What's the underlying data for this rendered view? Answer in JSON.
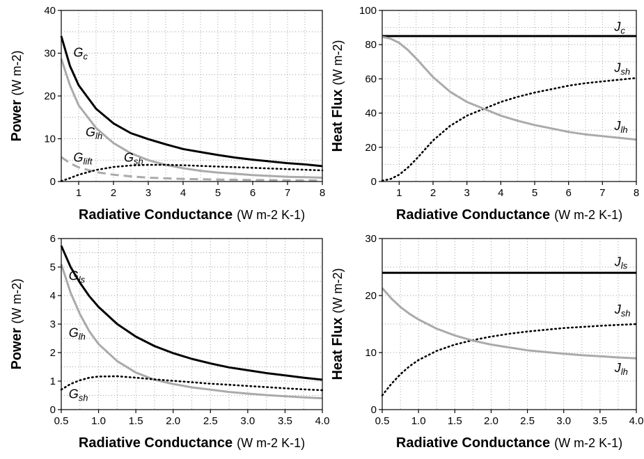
{
  "chart_data": [
    {
      "id": "top-left",
      "type": "line",
      "xlabel": "Radiative Conductance",
      "xunit": "(W m-2 K-1)",
      "ylabel": "Power",
      "yunit": "(W m-2)",
      "xlim": [
        0.5,
        8
      ],
      "ylim": [
        0,
        40
      ],
      "xticks": [
        1,
        2,
        3,
        4,
        5,
        6,
        7,
        8
      ],
      "xtick_labels": [
        "1",
        "2",
        "3",
        "4",
        "5",
        "6",
        "7",
        "8"
      ],
      "yticks": [
        0,
        10,
        20,
        30,
        40
      ],
      "ytick_labels": [
        "0",
        "10",
        "20",
        "30",
        "40"
      ],
      "grid": true,
      "series": [
        {
          "name": "Gc",
          "base": "G",
          "sub": "c",
          "color": "#000000",
          "style": "solid",
          "x": [
            0.5,
            0.75,
            1,
            1.5,
            2,
            2.5,
            3,
            3.5,
            4,
            4.5,
            5,
            5.5,
            6,
            6.5,
            7,
            7.5,
            8
          ],
          "y": [
            34,
            27,
            22.5,
            17,
            13.6,
            11.3,
            9.9,
            8.7,
            7.6,
            6.9,
            6.2,
            5.6,
            5.1,
            4.7,
            4.3,
            4.0,
            3.6
          ],
          "label_x": 0.85,
          "label_y": 29.2
        },
        {
          "name": "Glh",
          "base": "G",
          "sub": "lh",
          "color": "#aaaaaa",
          "style": "solid",
          "x": [
            0.5,
            0.75,
            1,
            1.5,
            2,
            2.5,
            3,
            3.5,
            4,
            4.5,
            5,
            5.5,
            6,
            6.5,
            7,
            7.5,
            8
          ],
          "y": [
            28.7,
            22.5,
            17.8,
            12.5,
            9.0,
            6.6,
            5.0,
            3.9,
            3.1,
            2.5,
            2.1,
            1.8,
            1.5,
            1.3,
            1.1,
            1.0,
            0.9
          ],
          "label_x": 1.2,
          "label_y": 10.6
        },
        {
          "name": "Glift",
          "base": "G",
          "sub": "lift",
          "color": "#aaaaaa",
          "style": "dashed",
          "x": [
            0.5,
            0.75,
            1,
            1.5,
            2,
            2.5,
            3,
            3.5,
            4,
            5,
            6,
            7,
            8
          ],
          "y": [
            5.7,
            4.3,
            3.3,
            2.2,
            1.6,
            1.2,
            0.9,
            0.75,
            0.6,
            0.45,
            0.35,
            0.3,
            0.25
          ],
          "label_x": 0.85,
          "label_y": 4.6
        },
        {
          "name": "Gsh",
          "base": "G",
          "sub": "sh",
          "color": "#000000",
          "style": "dotted",
          "x": [
            0.5,
            0.75,
            1,
            1.5,
            2,
            2.5,
            3,
            3.5,
            4,
            5,
            6,
            7,
            8
          ],
          "y": [
            0.1,
            0.8,
            1.6,
            2.7,
            3.4,
            3.75,
            3.9,
            3.9,
            3.8,
            3.5,
            3.2,
            2.9,
            2.6
          ],
          "label_x": 2.3,
          "label_y": 4.6
        }
      ]
    },
    {
      "id": "top-right",
      "type": "line",
      "xlabel": "Radiative Conductance",
      "xunit": "(W m-2 K-1)",
      "ylabel": "Heat Flux",
      "yunit": "(W m-2)",
      "xlim": [
        0.5,
        8
      ],
      "ylim": [
        0,
        100
      ],
      "xticks": [
        1,
        2,
        3,
        4,
        5,
        6,
        7,
        8
      ],
      "xtick_labels": [
        "1",
        "2",
        "3",
        "4",
        "5",
        "6",
        "7",
        "8"
      ],
      "yticks": [
        0,
        20,
        40,
        60,
        80,
        100
      ],
      "ytick_labels": [
        "0",
        "20",
        "40",
        "60",
        "80",
        "100"
      ],
      "grid": true,
      "series": [
        {
          "name": "Jc",
          "base": "J",
          "sub": "c",
          "color": "#000000",
          "style": "solid",
          "x": [
            0.5,
            8
          ],
          "y": [
            85,
            85
          ],
          "label_x": 7.35,
          "label_y": 88
        },
        {
          "name": "Jsh",
          "base": "J",
          "sub": "sh",
          "color": "#000000",
          "style": "dotted",
          "x": [
            0.5,
            0.75,
            1,
            1.25,
            1.5,
            1.75,
            2,
            2.5,
            3,
            3.5,
            4,
            4.5,
            5,
            5.5,
            6,
            6.5,
            7,
            7.5,
            8
          ],
          "y": [
            0.5,
            1.5,
            4,
            8,
            13,
            18.5,
            24,
            32.5,
            38.5,
            42.5,
            46.5,
            49.5,
            52,
            54,
            56,
            57.5,
            58.5,
            59.5,
            60.5
          ],
          "label_x": 7.35,
          "label_y": 64
        },
        {
          "name": "Jlh",
          "base": "J",
          "sub": "lh",
          "color": "#aaaaaa",
          "style": "solid",
          "x": [
            0.5,
            0.75,
            1,
            1.25,
            1.5,
            1.75,
            2,
            2.5,
            3,
            3.5,
            4,
            4.5,
            5,
            5.5,
            6,
            6.5,
            7,
            7.5,
            8
          ],
          "y": [
            84.5,
            83.5,
            81,
            77,
            72,
            66.5,
            61,
            52.5,
            46.5,
            42.5,
            38.5,
            35.5,
            33,
            31,
            29,
            27.5,
            26.5,
            25.5,
            24.5
          ],
          "label_x": 7.35,
          "label_y": 30
        }
      ]
    },
    {
      "id": "bottom-left",
      "type": "line",
      "xlabel": "Radiative Conductance",
      "xunit": "(W m-2 K-1)",
      "ylabel": "Power",
      "yunit": "(W m-2)",
      "xlim": [
        0.5,
        4
      ],
      "ylim": [
        0,
        6
      ],
      "xticks": [
        0.5,
        1,
        1.5,
        2,
        2.5,
        3,
        3.5,
        4
      ],
      "xtick_labels": [
        "0.5",
        "1.0",
        "1.5",
        "2.0",
        "2.5",
        "3.0",
        "3.5",
        "4.0"
      ],
      "yticks": [
        0,
        1,
        2,
        3,
        4,
        5,
        6
      ],
      "ytick_labels": [
        "0",
        "1",
        "2",
        "3",
        "4",
        "5",
        "6"
      ],
      "grid": true,
      "series": [
        {
          "name": "Gls",
          "base": "G",
          "sub": "ls",
          "color": "#000000",
          "style": "solid",
          "x": [
            0.5,
            0.625,
            0.75,
            0.875,
            1,
            1.25,
            1.5,
            1.75,
            2,
            2.25,
            2.5,
            2.75,
            3,
            3.25,
            3.5,
            3.75,
            4
          ],
          "y": [
            5.75,
            5.0,
            4.45,
            3.98,
            3.6,
            3.0,
            2.56,
            2.23,
            1.98,
            1.78,
            1.62,
            1.48,
            1.38,
            1.28,
            1.2,
            1.12,
            1.05
          ],
          "label_x": 0.6,
          "label_y": 4.55
        },
        {
          "name": "Glh",
          "base": "G",
          "sub": "lh",
          "color": "#aaaaaa",
          "style": "solid",
          "x": [
            0.5,
            0.625,
            0.75,
            0.875,
            1,
            1.25,
            1.5,
            1.75,
            2,
            2.25,
            2.5,
            2.75,
            3,
            3.25,
            3.5,
            3.75,
            4
          ],
          "y": [
            5.1,
            4.1,
            3.35,
            2.75,
            2.3,
            1.7,
            1.3,
            1.05,
            0.9,
            0.78,
            0.7,
            0.62,
            0.56,
            0.51,
            0.47,
            0.43,
            0.4
          ],
          "label_x": 0.6,
          "label_y": 2.55
        },
        {
          "name": "Gsh",
          "base": "G",
          "sub": "sh",
          "color": "#000000",
          "style": "dotted",
          "x": [
            0.5,
            0.625,
            0.75,
            0.875,
            1,
            1.25,
            1.5,
            1.75,
            2,
            2.25,
            2.5,
            2.75,
            3,
            3.25,
            3.5,
            3.75,
            4
          ],
          "y": [
            0.7,
            0.9,
            1.03,
            1.12,
            1.16,
            1.17,
            1.12,
            1.06,
            1.01,
            0.96,
            0.91,
            0.87,
            0.83,
            0.79,
            0.75,
            0.71,
            0.68
          ],
          "label_x": 0.6,
          "label_y": 0.4
        }
      ]
    },
    {
      "id": "bottom-right",
      "type": "line",
      "xlabel": "Radiative Conductance",
      "xunit": "(W m-2 K-1)",
      "ylabel": "Heat Flux",
      "yunit": "(W m-2)",
      "xlim": [
        0.5,
        4
      ],
      "ylim": [
        0,
        30
      ],
      "xticks": [
        0.5,
        1,
        1.5,
        2,
        2.5,
        3,
        3.5,
        4
      ],
      "xtick_labels": [
        "0.5",
        "1.0",
        "1.5",
        "2.0",
        "2.5",
        "3.0",
        "3.5",
        "4.0"
      ],
      "yticks": [
        0,
        10,
        20,
        30
      ],
      "ytick_labels": [
        "0",
        "10",
        "20",
        "30"
      ],
      "grid": true,
      "series": [
        {
          "name": "Jls",
          "base": "J",
          "sub": "ls",
          "color": "#000000",
          "style": "solid",
          "x": [
            0.5,
            4
          ],
          "y": [
            24,
            24
          ],
          "label_x": 3.7,
          "label_y": 25.2
        },
        {
          "name": "Jsh",
          "base": "J",
          "sub": "sh",
          "color": "#000000",
          "style": "dotted",
          "x": [
            0.5,
            0.625,
            0.75,
            0.875,
            1,
            1.25,
            1.5,
            1.75,
            2,
            2.25,
            2.5,
            2.75,
            3,
            3.25,
            3.5,
            3.75,
            4
          ],
          "y": [
            2.5,
            4.5,
            6.2,
            7.6,
            8.7,
            10.3,
            11.4,
            12.2,
            12.8,
            13.3,
            13.7,
            14.0,
            14.3,
            14.5,
            14.7,
            14.85,
            15.0
          ],
          "label_x": 3.7,
          "label_y": 16.8
        },
        {
          "name": "Jlh",
          "base": "J",
          "sub": "lh",
          "color": "#aaaaaa",
          "style": "solid",
          "x": [
            0.5,
            0.625,
            0.75,
            0.875,
            1,
            1.25,
            1.5,
            1.75,
            2,
            2.25,
            2.5,
            2.75,
            3,
            3.25,
            3.5,
            3.75,
            4
          ],
          "y": [
            21.3,
            19.5,
            18.0,
            16.8,
            15.8,
            14.2,
            13.0,
            12.1,
            11.4,
            10.9,
            10.4,
            10.1,
            9.8,
            9.55,
            9.35,
            9.15,
            9.0
          ],
          "label_x": 3.7,
          "label_y": 6.6
        }
      ]
    }
  ]
}
